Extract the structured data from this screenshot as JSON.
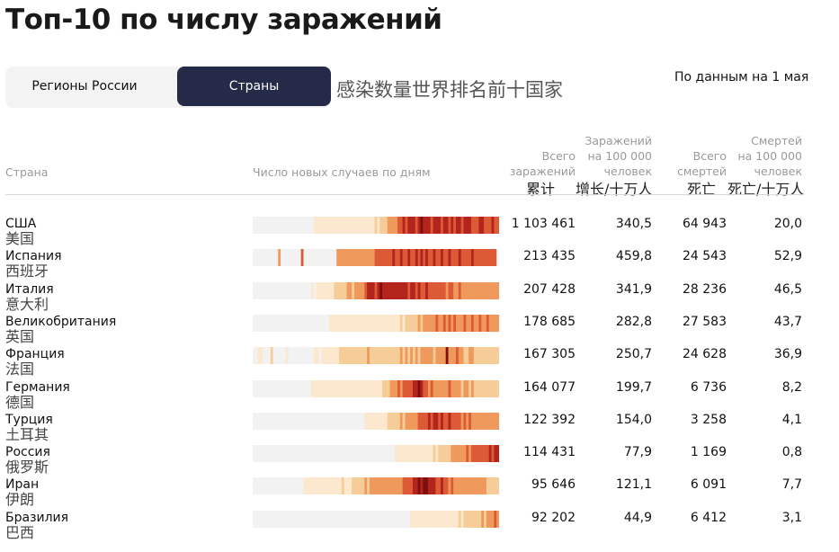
{
  "title": "Топ-10 по числу заражений",
  "tabs": [
    {
      "label": "Регионы России",
      "active": false
    },
    {
      "label": "Страны",
      "active": true
    }
  ],
  "subtitle_zh": "感染数量世界排名前十国家",
  "as_of": "По данным на 1 мая",
  "columns": {
    "country": "Страна",
    "new_cases": "Число новых случаев по дням",
    "total": [
      "Всего",
      "заражений"
    ],
    "per100k": [
      "Заражений",
      "на 100 000",
      "человек"
    ],
    "deaths": [
      "Всего",
      "смертей"
    ],
    "deaths100k": [
      "Смертей",
      "на 100 000",
      "человек"
    ]
  },
  "columns_zh": {
    "total": "累计",
    "per100k": "增长/十万人",
    "deaths": "死亡",
    "deaths100k": "死亡/十万人"
  },
  "colors": {
    "accent_tab": "#242a47",
    "heat_scale": [
      "#f2f2f2",
      "#fbe8cf",
      "#f6cc98",
      "#ef9a5c",
      "#dc5a36",
      "#b3241c",
      "#7f0f0f"
    ]
  },
  "chart_data": {
    "type": "table",
    "rows": [
      {
        "country": "США",
        "country_zh": "美国",
        "total": "1 103 461",
        "per100k": "340,5",
        "deaths": "64 943",
        "deaths100k": "20,0",
        "heat": [
          0,
          0,
          0,
          0,
          0,
          0,
          0,
          0,
          0,
          0,
          0,
          0,
          0,
          0,
          0,
          0,
          0,
          0,
          0,
          0,
          0,
          0,
          0,
          0,
          1,
          1,
          1,
          1,
          1,
          1,
          1,
          1,
          1,
          1,
          1,
          1,
          1,
          1,
          1,
          1,
          1,
          1,
          1,
          1,
          1,
          1,
          1,
          1,
          2,
          1,
          2,
          2,
          2,
          3,
          3,
          3,
          3,
          4,
          4,
          5,
          4,
          5,
          5,
          5,
          4,
          5,
          6,
          5,
          5,
          5,
          4,
          5,
          5,
          5,
          4,
          5,
          5,
          4,
          5,
          4,
          5,
          5,
          4,
          5,
          5,
          5,
          4,
          4,
          4,
          5,
          5,
          4,
          4,
          4,
          5,
          4,
          4
        ]
      },
      {
        "country": "Испания",
        "country_zh": "西班牙",
        "total": "213 435",
        "per100k": "459,8",
        "deaths": "24 543",
        "deaths100k": "52,9",
        "heat": [
          0,
          0,
          0,
          0,
          0,
          0,
          0,
          0,
          0,
          0,
          3,
          0,
          0,
          0,
          0,
          0,
          0,
          0,
          0,
          4,
          0,
          0,
          0,
          0,
          0,
          0,
          0,
          0,
          0,
          0,
          0,
          0,
          0,
          3,
          3,
          3,
          3,
          3,
          3,
          3,
          3,
          3,
          3,
          3,
          3,
          3,
          3,
          3,
          4,
          4,
          4,
          4,
          4,
          4,
          4,
          5,
          4,
          4,
          5,
          4,
          4,
          5,
          4,
          4,
          5,
          4,
          5,
          4,
          5,
          4,
          4,
          5,
          4,
          4,
          5,
          4,
          4,
          5,
          4,
          4,
          4,
          5,
          4,
          4,
          4,
          4,
          5,
          4,
          4,
          4,
          4,
          4,
          4,
          4,
          4,
          4,
          0
        ]
      },
      {
        "country": "Италия",
        "country_zh": "意大利",
        "total": "207 428",
        "per100k": "341,9",
        "deaths": "28 236",
        "deaths100k": "46,5",
        "heat": [
          0,
          0,
          0,
          0,
          0,
          0,
          0,
          0,
          0,
          0,
          0,
          0,
          0,
          0,
          0,
          0,
          0,
          0,
          0,
          0,
          0,
          0,
          0,
          1,
          0,
          1,
          1,
          1,
          1,
          1,
          1,
          1,
          2,
          2,
          2,
          2,
          2,
          3,
          3,
          2,
          3,
          3,
          3,
          3,
          4,
          5,
          5,
          5,
          4,
          5,
          6,
          5,
          5,
          5,
          5,
          5,
          5,
          5,
          5,
          5,
          5,
          4,
          5,
          5,
          4,
          5,
          4,
          4,
          5,
          4,
          4,
          4,
          4,
          4,
          4,
          4,
          3,
          4,
          4,
          3,
          3,
          4,
          3,
          3,
          3,
          3,
          3,
          3,
          3,
          3,
          3,
          3,
          3,
          3,
          3,
          3,
          3
        ]
      },
      {
        "country": "Великобритания",
        "country_zh": "英国",
        "total": "178 685",
        "per100k": "282,8",
        "deaths": "27 583",
        "deaths100k": "43,7",
        "heat": [
          0,
          0,
          0,
          0,
          0,
          0,
          0,
          0,
          0,
          0,
          0,
          0,
          0,
          0,
          0,
          0,
          0,
          0,
          0,
          0,
          0,
          0,
          0,
          0,
          0,
          0,
          0,
          0,
          0,
          0,
          1,
          1,
          1,
          1,
          1,
          1,
          1,
          1,
          1,
          1,
          1,
          1,
          1,
          1,
          1,
          1,
          1,
          1,
          1,
          1,
          1,
          1,
          1,
          1,
          1,
          1,
          1,
          1,
          2,
          1,
          2,
          2,
          2,
          2,
          2,
          3,
          2,
          3,
          3,
          3,
          3,
          3,
          4,
          3,
          3,
          4,
          3,
          4,
          3,
          4,
          3,
          3,
          3,
          4,
          3,
          3,
          4,
          3,
          3,
          4,
          3,
          3,
          4,
          3,
          3,
          3,
          3
        ]
      },
      {
        "country": "Франция",
        "country_zh": "法国",
        "total": "167 305",
        "per100k": "250,7",
        "deaths": "24 628",
        "deaths100k": "36,9",
        "heat": [
          0,
          0,
          1,
          1,
          0,
          0,
          0,
          2,
          0,
          0,
          0,
          0,
          0,
          1,
          0,
          0,
          0,
          0,
          0,
          0,
          0,
          0,
          0,
          0,
          1,
          1,
          0,
          1,
          1,
          1,
          1,
          1,
          1,
          1,
          2,
          2,
          2,
          2,
          2,
          2,
          2,
          2,
          2,
          2,
          2,
          3,
          2,
          2,
          2,
          2,
          2,
          2,
          2,
          2,
          2,
          2,
          2,
          2,
          3,
          2,
          3,
          2,
          3,
          2,
          3,
          2,
          3,
          3,
          3,
          3,
          3,
          2,
          3,
          3,
          3,
          3,
          6,
          3,
          3,
          3,
          4,
          3,
          3,
          2,
          2,
          3,
          3,
          2,
          2,
          2,
          2,
          2,
          2,
          2,
          2,
          2,
          2
        ]
      },
      {
        "country": "Германия",
        "country_zh": "德国",
        "total": "164 077",
        "per100k": "199,7",
        "deaths": "6 736",
        "deaths100k": "8,2",
        "heat": [
          0,
          0,
          0,
          0,
          0,
          0,
          0,
          0,
          0,
          0,
          0,
          0,
          0,
          0,
          0,
          0,
          0,
          0,
          0,
          0,
          0,
          0,
          0,
          1,
          1,
          1,
          1,
          1,
          1,
          1,
          1,
          1,
          1,
          1,
          1,
          1,
          1,
          1,
          1,
          1,
          1,
          1,
          1,
          1,
          1,
          1,
          1,
          1,
          1,
          1,
          1,
          2,
          2,
          2,
          3,
          3,
          3,
          4,
          3,
          4,
          4,
          4,
          4,
          5,
          5,
          6,
          5,
          4,
          4,
          3,
          4,
          3,
          3,
          3,
          3,
          3,
          3,
          4,
          3,
          3,
          3,
          3,
          2,
          3,
          3,
          2,
          3,
          2,
          2,
          2,
          2,
          2,
          2,
          2,
          2,
          2,
          2
        ]
      },
      {
        "country": "Турция",
        "country_zh": "土耳其",
        "total": "122 392",
        "per100k": "154,0",
        "deaths": "3 258",
        "deaths100k": "4,1",
        "heat": [
          0,
          0,
          0,
          0,
          0,
          0,
          0,
          0,
          0,
          0,
          0,
          0,
          0,
          0,
          0,
          0,
          0,
          0,
          0,
          0,
          0,
          0,
          0,
          0,
          0,
          0,
          0,
          0,
          0,
          0,
          0,
          0,
          0,
          0,
          0,
          0,
          0,
          0,
          0,
          0,
          0,
          0,
          0,
          0,
          1,
          1,
          1,
          1,
          1,
          1,
          1,
          1,
          1,
          2,
          2,
          2,
          2,
          2,
          3,
          2,
          3,
          3,
          3,
          3,
          3,
          4,
          4,
          4,
          4,
          5,
          4,
          5,
          5,
          4,
          5,
          4,
          4,
          5,
          4,
          4,
          4,
          4,
          3,
          4,
          3,
          4,
          3,
          3,
          3,
          3,
          3,
          3,
          3,
          3,
          3,
          3,
          3
        ]
      },
      {
        "country": "Россия",
        "country_zh": "俄罗斯",
        "total": "114 431",
        "per100k": "77,9",
        "deaths": "1 169",
        "deaths100k": "0,8",
        "heat": [
          0,
          0,
          0,
          0,
          0,
          0,
          0,
          0,
          0,
          0,
          0,
          0,
          0,
          0,
          0,
          0,
          0,
          0,
          0,
          0,
          0,
          0,
          0,
          0,
          0,
          0,
          0,
          0,
          0,
          0,
          0,
          0,
          0,
          0,
          0,
          0,
          0,
          0,
          0,
          0,
          0,
          0,
          0,
          0,
          0,
          0,
          0,
          0,
          0,
          0,
          0,
          0,
          0,
          0,
          0,
          0,
          1,
          1,
          1,
          1,
          1,
          1,
          1,
          1,
          1,
          1,
          1,
          1,
          1,
          1,
          1,
          2,
          1,
          2,
          2,
          2,
          2,
          2,
          3,
          3,
          3,
          3,
          3,
          3,
          4,
          3,
          4,
          4,
          4,
          4,
          4,
          4,
          4,
          5,
          4,
          5,
          5
        ]
      },
      {
        "country": "Иран",
        "country_zh": "伊朗",
        "total": "95 646",
        "per100k": "121,1",
        "deaths": "6 091",
        "deaths100k": "7,7",
        "heat": [
          0,
          0,
          0,
          0,
          0,
          0,
          0,
          0,
          0,
          0,
          0,
          0,
          0,
          0,
          0,
          0,
          0,
          0,
          0,
          0,
          1,
          1,
          1,
          1,
          1,
          1,
          1,
          1,
          1,
          1,
          1,
          1,
          1,
          1,
          1,
          2,
          1,
          1,
          1,
          2,
          2,
          2,
          2,
          2,
          3,
          2,
          3,
          3,
          3,
          3,
          3,
          3,
          3,
          3,
          3,
          3,
          3,
          3,
          3,
          4,
          4,
          4,
          4,
          5,
          5,
          6,
          5,
          6,
          6,
          5,
          5,
          5,
          4,
          4,
          5,
          4,
          4,
          3,
          4,
          3,
          3,
          3,
          3,
          3,
          3,
          3,
          3,
          3,
          3,
          3,
          3,
          3,
          2,
          2,
          2,
          2,
          2
        ]
      },
      {
        "country": "Бразилия",
        "country_zh": "巴西",
        "total": "92 202",
        "per100k": "44,9",
        "deaths": "6 412",
        "deaths100k": "3,1",
        "heat": [
          0,
          0,
          0,
          0,
          0,
          0,
          0,
          0,
          0,
          0,
          0,
          0,
          0,
          0,
          0,
          0,
          0,
          0,
          0,
          0,
          0,
          0,
          0,
          0,
          0,
          0,
          0,
          0,
          0,
          0,
          0,
          0,
          0,
          0,
          0,
          0,
          0,
          0,
          0,
          0,
          0,
          0,
          0,
          0,
          0,
          0,
          0,
          0,
          0,
          0,
          0,
          0,
          0,
          0,
          0,
          0,
          0,
          0,
          0,
          0,
          0,
          0,
          1,
          1,
          1,
          1,
          1,
          1,
          1,
          1,
          1,
          1,
          1,
          1,
          1,
          1,
          1,
          1,
          1,
          1,
          1,
          2,
          1,
          2,
          2,
          2,
          2,
          2,
          2,
          2,
          3,
          2,
          3,
          3,
          3,
          4,
          3
        ]
      }
    ]
  }
}
